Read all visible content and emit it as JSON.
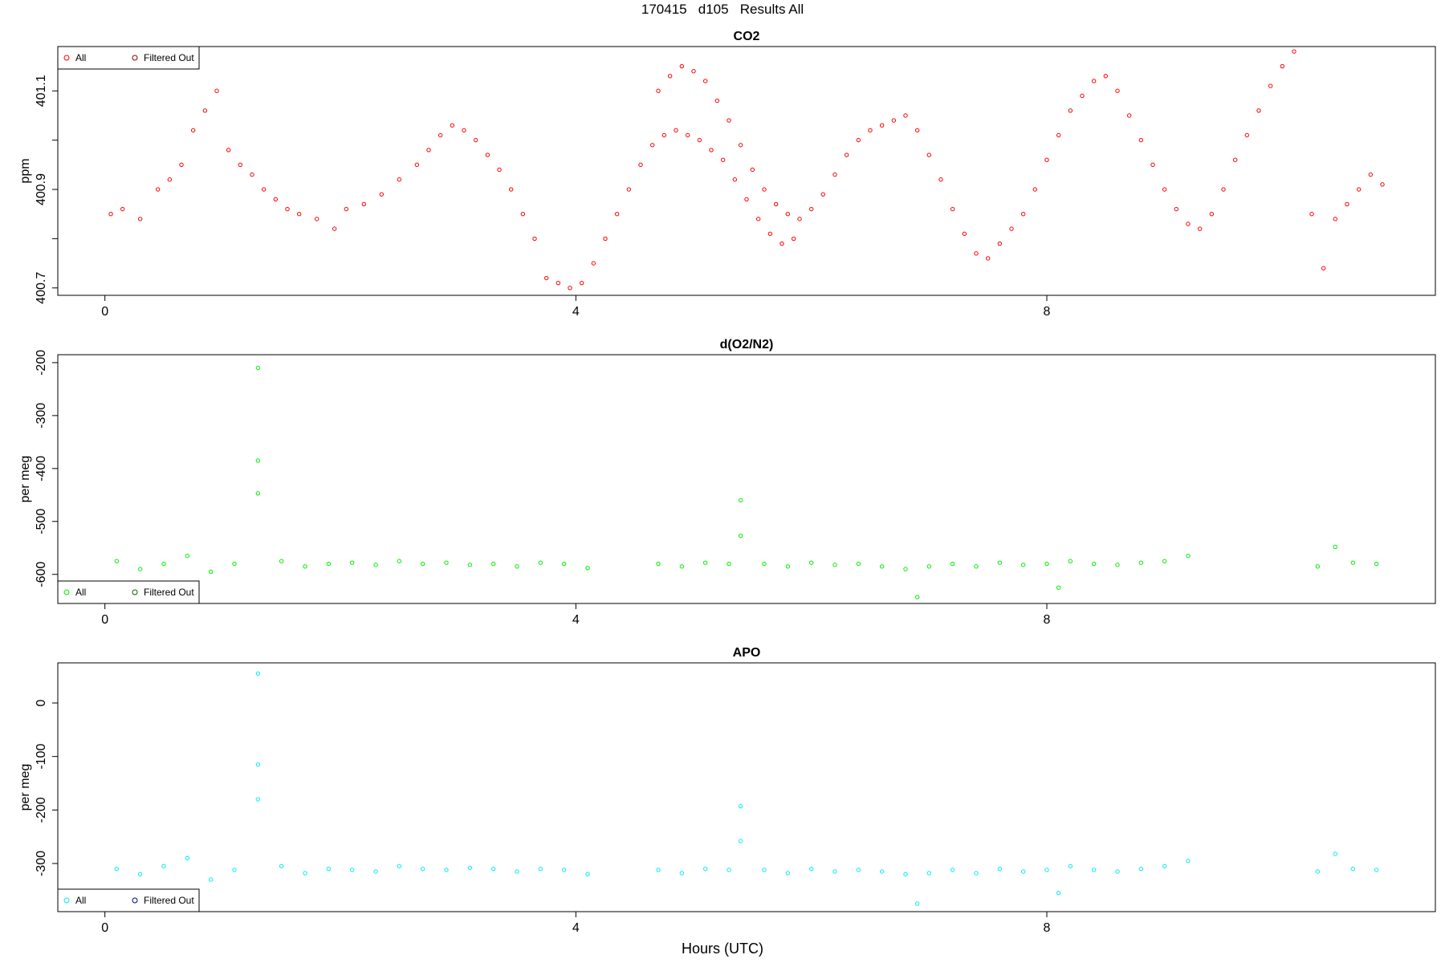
{
  "page_title": "170415   d105   Results All",
  "x_label": "Hours (UTC)",
  "colors": {
    "co2": "#ff0000",
    "o2n2": "#00ee00",
    "apo": "#00eeee",
    "filtered_co2": "#8b0000",
    "filtered_o2n2": "#006400",
    "filtered_apo": "#00008b"
  },
  "panels": [
    {
      "title": "CO2",
      "ylabel": "ppm",
      "yticks": [
        "400.7",
        "400.9",
        "401.1"
      ],
      "legend_position": "top-left",
      "legend": [
        "All",
        "Filtered Out"
      ]
    },
    {
      "title": "d(O2/N2)",
      "ylabel": "per meg",
      "yticks": [
        "-600",
        "-500",
        "-400",
        "-300",
        "-200"
      ],
      "legend_position": "bottom-left",
      "legend": [
        "All",
        "Filtered Out"
      ]
    },
    {
      "title": "APO",
      "ylabel": "per meg",
      "yticks": [
        "-300",
        "-200",
        "-100",
        "0"
      ],
      "legend_position": "bottom-left",
      "legend": [
        "All",
        "Filtered Out"
      ]
    }
  ],
  "xticks": [
    "0",
    "4",
    "8"
  ],
  "chart_data": [
    {
      "type": "scatter",
      "title": "CO2",
      "xlabel": "Hours (UTC)",
      "ylabel": "ppm",
      "xlim": [
        -0.4,
        11.3
      ],
      "ylim": [
        400.685,
        401.19
      ],
      "x_ticks": [
        0,
        4,
        8
      ],
      "y_ticks": [
        400.7,
        400.8,
        400.9,
        401.0,
        401.1
      ],
      "legend_position": "top-left",
      "series": [
        {
          "name": "All",
          "points": [
            [
              0.05,
              400.85
            ],
            [
              0.15,
              400.86
            ],
            [
              0.3,
              400.84
            ],
            [
              0.45,
              400.9
            ],
            [
              0.55,
              400.92
            ],
            [
              0.65,
              400.95
            ],
            [
              0.75,
              401.02
            ],
            [
              0.85,
              401.06
            ],
            [
              0.95,
              401.1
            ],
            [
              1.05,
              400.98
            ],
            [
              1.15,
              400.95
            ],
            [
              1.25,
              400.93
            ],
            [
              1.35,
              400.9
            ],
            [
              1.45,
              400.88
            ],
            [
              1.55,
              400.86
            ],
            [
              1.65,
              400.85
            ],
            [
              1.8,
              400.84
            ],
            [
              1.95,
              400.82
            ],
            [
              2.05,
              400.86
            ],
            [
              2.2,
              400.87
            ],
            [
              2.35,
              400.89
            ],
            [
              2.5,
              400.92
            ],
            [
              2.65,
              400.95
            ],
            [
              2.75,
              400.98
            ],
            [
              2.85,
              401.01
            ],
            [
              2.95,
              401.03
            ],
            [
              3.05,
              401.02
            ],
            [
              3.15,
              401.0
            ],
            [
              3.25,
              400.97
            ],
            [
              3.35,
              400.94
            ],
            [
              3.45,
              400.9
            ],
            [
              3.55,
              400.85
            ],
            [
              3.65,
              400.8
            ],
            [
              3.75,
              400.72
            ],
            [
              3.85,
              400.71
            ],
            [
              3.95,
              400.7
            ],
            [
              4.05,
              400.71
            ],
            [
              4.15,
              400.75
            ],
            [
              4.25,
              400.8
            ],
            [
              4.35,
              400.85
            ],
            [
              4.45,
              400.9
            ],
            [
              4.55,
              400.95
            ],
            [
              4.65,
              400.99
            ],
            [
              4.75,
              401.01
            ],
            [
              4.85,
              401.02
            ],
            [
              4.95,
              401.01
            ],
            [
              5.05,
              401.0
            ],
            [
              5.15,
              400.98
            ],
            [
              5.25,
              400.96
            ],
            [
              5.35,
              400.92
            ],
            [
              5.45,
              400.88
            ],
            [
              5.55,
              400.84
            ],
            [
              5.65,
              400.81
            ],
            [
              5.75,
              400.79
            ],
            [
              5.85,
              400.8
            ],
            [
              4.7,
              401.1
            ],
            [
              4.8,
              401.13
            ],
            [
              4.9,
              401.15
            ],
            [
              5.0,
              401.14
            ],
            [
              5.1,
              401.12
            ],
            [
              5.2,
              401.08
            ],
            [
              5.3,
              401.04
            ],
            [
              5.4,
              400.99
            ],
            [
              5.5,
              400.94
            ],
            [
              5.6,
              400.9
            ],
            [
              5.7,
              400.87
            ],
            [
              5.8,
              400.85
            ],
            [
              5.9,
              400.84
            ],
            [
              6.0,
              400.86
            ],
            [
              6.1,
              400.89
            ],
            [
              6.2,
              400.93
            ],
            [
              6.3,
              400.97
            ],
            [
              6.4,
              401.0
            ],
            [
              6.5,
              401.02
            ],
            [
              6.6,
              401.03
            ],
            [
              6.7,
              401.04
            ],
            [
              6.8,
              401.05
            ],
            [
              6.9,
              401.02
            ],
            [
              7.0,
              400.97
            ],
            [
              7.1,
              400.92
            ],
            [
              7.2,
              400.86
            ],
            [
              7.3,
              400.81
            ],
            [
              7.4,
              400.77
            ],
            [
              7.5,
              400.76
            ],
            [
              7.6,
              400.79
            ],
            [
              7.7,
              400.82
            ],
            [
              7.8,
              400.85
            ],
            [
              7.9,
              400.9
            ],
            [
              8.0,
              400.96
            ],
            [
              8.1,
              401.01
            ],
            [
              8.2,
              401.06
            ],
            [
              8.3,
              401.09
            ],
            [
              8.4,
              401.12
            ],
            [
              8.5,
              401.13
            ],
            [
              8.6,
              401.1
            ],
            [
              8.7,
              401.05
            ],
            [
              8.8,
              401.0
            ],
            [
              8.9,
              400.95
            ],
            [
              9.0,
              400.9
            ],
            [
              9.1,
              400.86
            ],
            [
              9.2,
              400.83
            ],
            [
              9.3,
              400.82
            ],
            [
              9.4,
              400.85
            ],
            [
              9.5,
              400.9
            ],
            [
              9.6,
              400.96
            ],
            [
              9.7,
              401.01
            ],
            [
              9.8,
              401.06
            ],
            [
              9.9,
              401.11
            ],
            [
              10.0,
              401.15
            ],
            [
              10.1,
              401.18
            ],
            [
              10.25,
              400.85
            ],
            [
              10.35,
              400.74
            ],
            [
              10.45,
              400.84
            ],
            [
              10.55,
              400.87
            ],
            [
              10.65,
              400.9
            ],
            [
              10.75,
              400.93
            ],
            [
              10.85,
              400.91
            ]
          ]
        },
        {
          "name": "Filtered Out",
          "points": []
        }
      ]
    },
    {
      "type": "scatter",
      "title": "d(O2/N2)",
      "xlabel": "Hours (UTC)",
      "ylabel": "per meg",
      "xlim": [
        -0.4,
        11.3
      ],
      "ylim": [
        -655,
        -185
      ],
      "x_ticks": [
        0,
        4,
        8
      ],
      "y_ticks": [
        -600,
        -500,
        -400,
        -300,
        -200
      ],
      "legend_position": "bottom-left",
      "series": [
        {
          "name": "All",
          "points": [
            [
              0.1,
              -575
            ],
            [
              0.3,
              -590
            ],
            [
              0.5,
              -580
            ],
            [
              0.7,
              -565
            ],
            [
              0.9,
              -595
            ],
            [
              1.1,
              -580
            ],
            [
              1.3,
              -210
            ],
            [
              1.3,
              -385
            ],
            [
              1.3,
              -447
            ],
            [
              1.5,
              -575
            ],
            [
              1.7,
              -585
            ],
            [
              1.9,
              -580
            ],
            [
              2.1,
              -578
            ],
            [
              2.3,
              -582
            ],
            [
              2.5,
              -575
            ],
            [
              2.7,
              -580
            ],
            [
              2.9,
              -578
            ],
            [
              3.1,
              -582
            ],
            [
              3.3,
              -580
            ],
            [
              3.5,
              -585
            ],
            [
              3.7,
              -578
            ],
            [
              3.9,
              -580
            ],
            [
              4.1,
              -588
            ],
            [
              4.7,
              -580
            ],
            [
              4.9,
              -585
            ],
            [
              5.1,
              -578
            ],
            [
              5.3,
              -580
            ],
            [
              5.4,
              -460
            ],
            [
              5.4,
              -527
            ],
            [
              5.6,
              -580
            ],
            [
              5.8,
              -585
            ],
            [
              6.0,
              -578
            ],
            [
              6.2,
              -582
            ],
            [
              6.4,
              -580
            ],
            [
              6.6,
              -585
            ],
            [
              6.8,
              -590
            ],
            [
              6.9,
              -643
            ],
            [
              7.0,
              -585
            ],
            [
              7.2,
              -580
            ],
            [
              7.4,
              -585
            ],
            [
              7.6,
              -578
            ],
            [
              7.8,
              -582
            ],
            [
              8.0,
              -580
            ],
            [
              8.1,
              -625
            ],
            [
              8.2,
              -575
            ],
            [
              8.4,
              -580
            ],
            [
              8.6,
              -582
            ],
            [
              8.8,
              -578
            ],
            [
              9.0,
              -575
            ],
            [
              9.2,
              -565
            ],
            [
              10.3,
              -585
            ],
            [
              10.45,
              -548
            ],
            [
              10.6,
              -578
            ],
            [
              10.8,
              -580
            ]
          ]
        },
        {
          "name": "Filtered Out",
          "points": []
        }
      ]
    },
    {
      "type": "scatter",
      "title": "APO",
      "xlabel": "Hours (UTC)",
      "ylabel": "per meg",
      "xlim": [
        -0.4,
        11.3
      ],
      "ylim": [
        -390,
        75
      ],
      "x_ticks": [
        0,
        4,
        8
      ],
      "y_ticks": [
        -300,
        -200,
        -100,
        0
      ],
      "legend_position": "bottom-left",
      "series": [
        {
          "name": "All",
          "points": [
            [
              0.1,
              -310
            ],
            [
              0.3,
              -320
            ],
            [
              0.5,
              -305
            ],
            [
              0.7,
              -290
            ],
            [
              0.9,
              -330
            ],
            [
              1.1,
              -312
            ],
            [
              1.3,
              55
            ],
            [
              1.3,
              -115
            ],
            [
              1.3,
              -180
            ],
            [
              1.5,
              -305
            ],
            [
              1.7,
              -318
            ],
            [
              1.9,
              -310
            ],
            [
              2.1,
              -312
            ],
            [
              2.3,
              -315
            ],
            [
              2.5,
              -305
            ],
            [
              2.7,
              -310
            ],
            [
              2.9,
              -312
            ],
            [
              3.1,
              -308
            ],
            [
              3.3,
              -310
            ],
            [
              3.5,
              -315
            ],
            [
              3.7,
              -310
            ],
            [
              3.9,
              -312
            ],
            [
              4.1,
              -320
            ],
            [
              4.7,
              -312
            ],
            [
              4.9,
              -318
            ],
            [
              5.1,
              -310
            ],
            [
              5.3,
              -312
            ],
            [
              5.4,
              -193
            ],
            [
              5.4,
              -258
            ],
            [
              5.6,
              -312
            ],
            [
              5.8,
              -318
            ],
            [
              6.0,
              -310
            ],
            [
              6.2,
              -315
            ],
            [
              6.4,
              -312
            ],
            [
              6.6,
              -315
            ],
            [
              6.8,
              -320
            ],
            [
              6.9,
              -375
            ],
            [
              7.0,
              -318
            ],
            [
              7.2,
              -312
            ],
            [
              7.4,
              -318
            ],
            [
              7.6,
              -310
            ],
            [
              7.8,
              -315
            ],
            [
              8.0,
              -312
            ],
            [
              8.1,
              -355
            ],
            [
              8.2,
              -305
            ],
            [
              8.4,
              -312
            ],
            [
              8.6,
              -315
            ],
            [
              8.8,
              -310
            ],
            [
              9.0,
              -305
            ],
            [
              9.2,
              -295
            ],
            [
              10.3,
              -315
            ],
            [
              10.45,
              -282
            ],
            [
              10.6,
              -310
            ],
            [
              10.8,
              -312
            ]
          ]
        },
        {
          "name": "Filtered Out",
          "points": []
        }
      ]
    }
  ]
}
